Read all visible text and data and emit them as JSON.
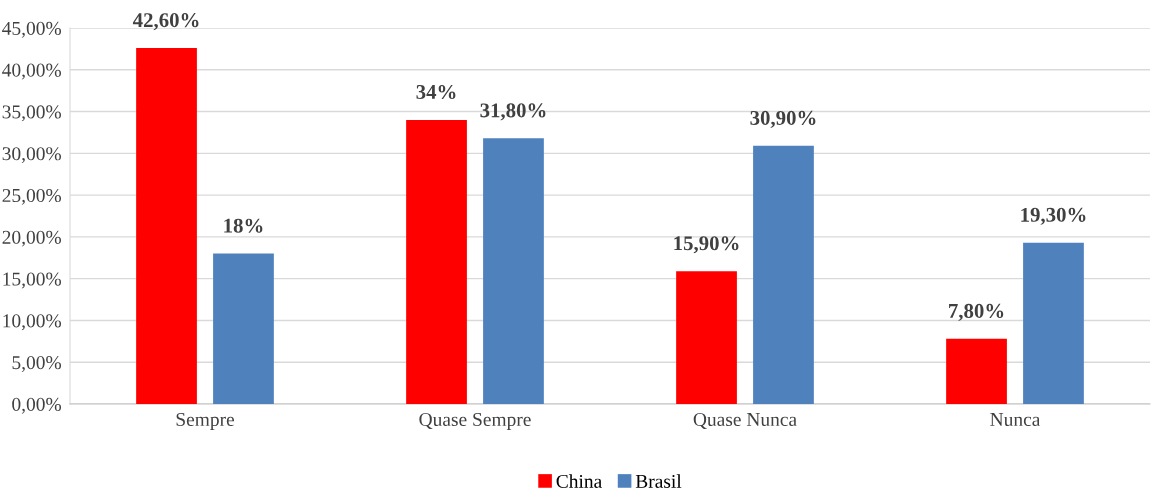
{
  "chart_data": {
    "type": "bar",
    "categories": [
      "Sempre",
      "Quase Sempre",
      "Quase Nunca",
      "Nunca"
    ],
    "series": [
      {
        "name": "China",
        "color": "#ff0000",
        "values": [
          42.6,
          34,
          15.9,
          7.8
        ],
        "value_labels": [
          "42,60%",
          "34%",
          "15,90%",
          "7,80%"
        ]
      },
      {
        "name": "Brasil",
        "color": "#4f81bd",
        "values": [
          18,
          31.8,
          30.9,
          19.3
        ],
        "value_labels": [
          "18%",
          "31,80%",
          "30,90%",
          "19,30%"
        ]
      }
    ],
    "ylim": [
      0,
      45
    ],
    "yticks": [
      {
        "value": 0,
        "label": "0,00%"
      },
      {
        "value": 5,
        "label": "5,00%"
      },
      {
        "value": 10,
        "label": "10,00%"
      },
      {
        "value": 15,
        "label": "15,00%"
      },
      {
        "value": 20,
        "label": "20,00%"
      },
      {
        "value": 25,
        "label": "25,00%"
      },
      {
        "value": 30,
        "label": "30,00%"
      },
      {
        "value": 35,
        "label": "35,00%"
      },
      {
        "value": 40,
        "label": "40,00%"
      },
      {
        "value": 45,
        "label": "45,00%"
      }
    ],
    "grid": "y",
    "legend": "bottom"
  }
}
